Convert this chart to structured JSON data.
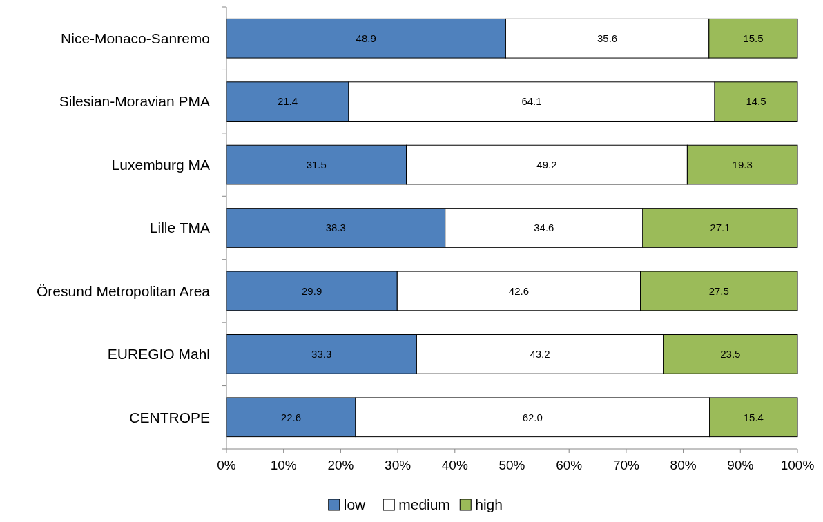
{
  "chart_data": {
    "type": "bar",
    "orientation": "horizontal",
    "stacked": true,
    "categories": [
      "Nice-Monaco-Sanremo",
      "Silesian-Moravian PMA",
      "Luxemburg MA",
      "Lille TMA",
      "Öresund Metropolitan Area",
      "EUREGIO Mahl",
      "CENTROPE"
    ],
    "series": [
      {
        "name": "low",
        "color": "#4f81bd",
        "values": [
          48.9,
          21.4,
          31.5,
          38.3,
          29.9,
          33.3,
          22.6
        ],
        "value_labels": [
          "48.9",
          "21.4",
          "31.5",
          "38.3",
          "29.9",
          "33.3",
          "22.6"
        ]
      },
      {
        "name": "medium",
        "color": "#ffffff",
        "values": [
          35.6,
          64.1,
          49.2,
          34.6,
          42.6,
          43.2,
          62.0
        ],
        "value_labels": [
          "35.6",
          "64.1",
          "49.2",
          "34.6",
          "42.6",
          "43.2",
          "62.0"
        ]
      },
      {
        "name": "high",
        "color": "#9bbb59",
        "values": [
          15.5,
          14.5,
          19.3,
          27.1,
          27.5,
          23.5,
          15.4
        ],
        "value_labels": [
          "15.5",
          "14.5",
          "19.3",
          "27.1",
          "27.5",
          "23.5",
          "15.4"
        ]
      }
    ],
    "xlim": [
      0,
      100
    ],
    "xticks": [
      {
        "value": 0,
        "label": "0%"
      },
      {
        "value": 10,
        "label": "10%"
      },
      {
        "value": 20,
        "label": "20%"
      },
      {
        "value": 30,
        "label": "30%"
      },
      {
        "value": 40,
        "label": "40%"
      },
      {
        "value": 50,
        "label": "50%"
      },
      {
        "value": 60,
        "label": "60%"
      },
      {
        "value": 70,
        "label": "70%"
      },
      {
        "value": 80,
        "label": "80%"
      },
      {
        "value": 90,
        "label": "90%"
      },
      {
        "value": 100,
        "label": "100%"
      }
    ],
    "grid": false,
    "legend": "bottom"
  }
}
